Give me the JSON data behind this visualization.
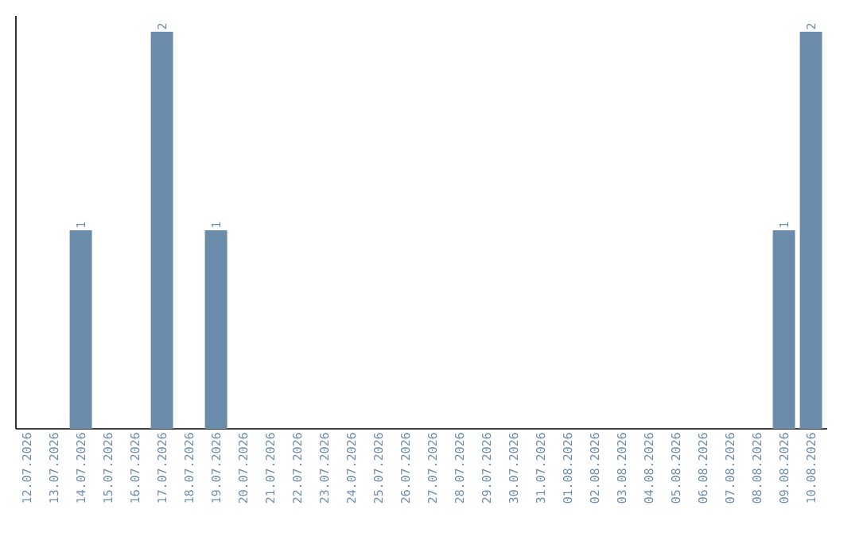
{
  "chart_data": {
    "type": "bar",
    "color": "#6a8caa",
    "categories": [
      "12.07.2026",
      "13.07.2026",
      "14.07.2026",
      "15.07.2026",
      "16.07.2026",
      "17.07.2026",
      "18.07.2026",
      "19.07.2026",
      "20.07.2026",
      "21.07.2026",
      "22.07.2026",
      "23.07.2026",
      "24.07.2026",
      "25.07.2026",
      "26.07.2026",
      "27.07.2026",
      "28.07.2026",
      "29.07.2026",
      "30.07.2026",
      "31.07.2026",
      "01.08.2026",
      "02.08.2026",
      "03.08.2026",
      "04.08.2026",
      "05.08.2026",
      "06.08.2026",
      "07.08.2026",
      "08.08.2026",
      "09.08.2026",
      "10.08.2026"
    ],
    "values": [
      0,
      0,
      1,
      0,
      0,
      2,
      0,
      1,
      0,
      0,
      0,
      0,
      0,
      0,
      0,
      0,
      0,
      0,
      0,
      0,
      0,
      0,
      0,
      0,
      0,
      0,
      0,
      0,
      1,
      2
    ],
    "value_labels": [
      null,
      null,
      "1",
      null,
      null,
      "2",
      null,
      "1",
      null,
      null,
      null,
      null,
      null,
      null,
      null,
      null,
      null,
      null,
      null,
      null,
      null,
      null,
      null,
      null,
      null,
      null,
      null,
      null,
      "1",
      "2"
    ],
    "ylim": [
      0,
      2
    ],
    "tick_labels": "x"
  }
}
